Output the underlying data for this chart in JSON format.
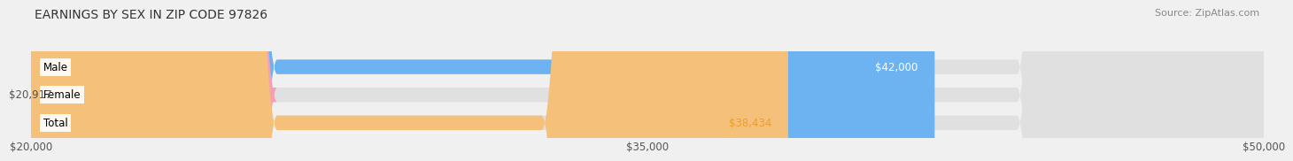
{
  "title": "EARNINGS BY SEX IN ZIP CODE 97826",
  "source_text": "Source: ZipAtlas.com",
  "categories": [
    "Male",
    "Female",
    "Total"
  ],
  "values": [
    42000,
    20917,
    38434
  ],
  "bar_colors": [
    "#6db3f2",
    "#f5a0b5",
    "#f5c07a"
  ],
  "label_colors": [
    "#ffffff",
    "#555555",
    "#e8a030"
  ],
  "bar_labels": [
    "$42,000",
    "$20,917",
    "$38,434"
  ],
  "xmin": 20000,
  "xmax": 50000,
  "xticks": [
    20000,
    35000,
    50000
  ],
  "xtick_labels": [
    "$20,000",
    "$35,000",
    "$50,000"
  ],
  "background_color": "#f0f0f0",
  "bar_background_color": "#e0e0e0",
  "title_fontsize": 10,
  "source_fontsize": 8,
  "label_fontsize": 8.5,
  "tick_fontsize": 8.5,
  "category_fontsize": 8.5,
  "bar_height": 0.52
}
